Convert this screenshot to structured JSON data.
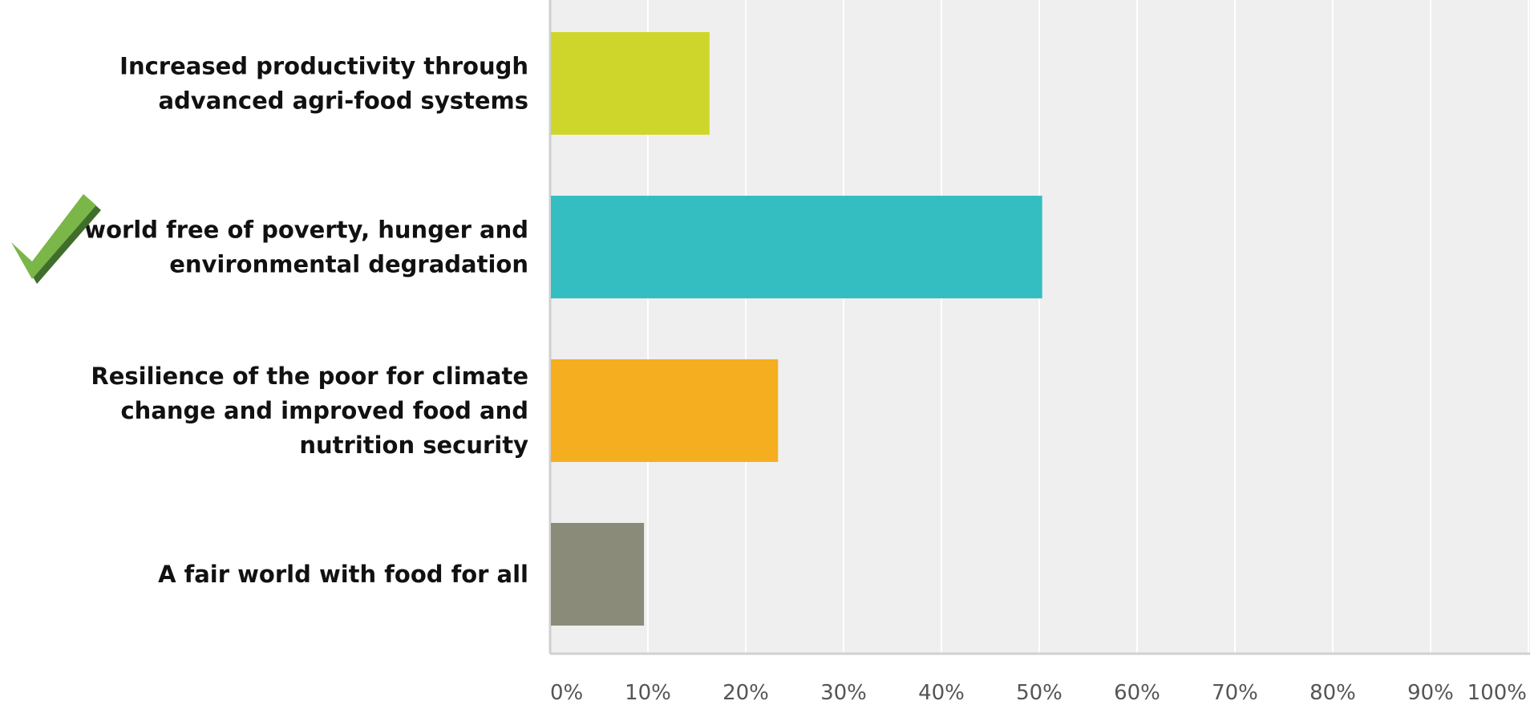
{
  "chart_data": {
    "type": "bar",
    "orientation": "horizontal",
    "categories": [
      [
        "Increased productivity through",
        "advanced agri-food systems"
      ],
      [
        "A world free of poverty, hunger and",
        "environmental degradation"
      ],
      [
        "Resilience of the poor for climate",
        "change and improved food and",
        "nutrition security"
      ],
      [
        "A fair world with food for all"
      ]
    ],
    "values": [
      16.3,
      50.3,
      23.3,
      9.6
    ],
    "xlim": [
      0,
      100
    ],
    "x_ticks": [
      "0%",
      "10%",
      "20%",
      "30%",
      "40%",
      "50%",
      "60%",
      "70%",
      "80%",
      "90%",
      "100%"
    ],
    "x_tick_values": [
      0,
      10,
      20,
      30,
      40,
      50,
      60,
      70,
      80,
      90,
      100
    ],
    "bar_colors": [
      "#cfd62b",
      "#35bec1",
      "#f5ae20",
      "#8b8b7a"
    ],
    "grid": true,
    "grid_color": "#ffffff",
    "plot_background": "#efefef",
    "checkmark_category_index": 1,
    "checkmark_color": "#7ab648",
    "title": "",
    "xlabel": "",
    "ylabel": ""
  }
}
